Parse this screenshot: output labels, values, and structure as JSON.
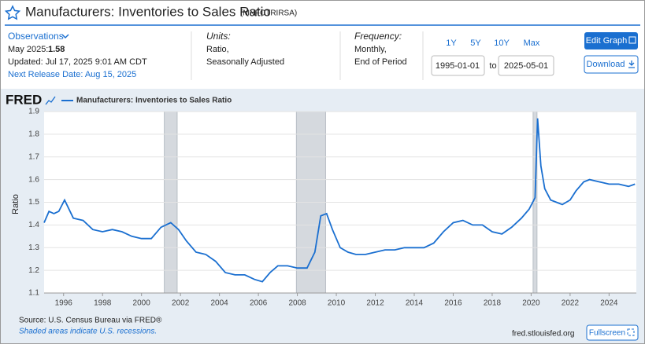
{
  "header": {
    "title": "Manufacturers: Inventories to Sales Ratio",
    "series_id": "(MNFCTRIRSA)"
  },
  "info": {
    "observations": "Observations",
    "latest_label": "May 2025:",
    "latest_value": 1.58,
    "updated": "Updated: Jul 17, 2025 9:01 AM CDT",
    "next_release": "Next Release Date: Aug 15, 2025",
    "units_label": "Units:",
    "units": [
      "Ratio,",
      "Seasonally Adjusted"
    ],
    "frequency_label": "Frequency:",
    "frequency": [
      "Monthly,",
      "End of Period"
    ]
  },
  "controls": {
    "ranges": [
      "1Y",
      "5Y",
      "10Y",
      "Max"
    ],
    "start": "1995-01-01",
    "to": "to",
    "end": "2025-05-01",
    "edit": "Edit Graph",
    "download": "Download",
    "fullscreen": "Fullscreen"
  },
  "footer": {
    "source": "Source: U.S. Census Bureau via FRED®",
    "note": "Shaded areas indicate U.S. recessions.",
    "site": "fred.stlouisfed.org"
  },
  "brand": "FRED",
  "chart_data": {
    "type": "line",
    "y_label": "Ratio",
    "x": [
      1995.0,
      1995.25,
      1995.5,
      1995.75,
      1996.05,
      1996.5,
      1997.0,
      1997.5,
      1998.0,
      1998.5,
      1999.0,
      1999.5,
      2000.0,
      2000.5,
      2001.0,
      2001.5,
      2001.9,
      2002.3,
      2002.8,
      2003.3,
      2003.8,
      2004.3,
      2004.8,
      2005.3,
      2005.8,
      2006.2,
      2006.6,
      2007.0,
      2007.5,
      2008.0,
      2008.5,
      2008.9,
      2009.2,
      2009.5,
      2009.8,
      2010.2,
      2010.6,
      2011.0,
      2011.5,
      2012.0,
      2012.5,
      2013.0,
      2013.5,
      2014.0,
      2014.5,
      2015.0,
      2015.5,
      2016.0,
      2016.5,
      2017.0,
      2017.5,
      2018.0,
      2018.5,
      2019.0,
      2019.5,
      2019.9,
      2020.2,
      2020.33,
      2020.5,
      2020.7,
      2021.0,
      2021.3,
      2021.6,
      2022.0,
      2022.3,
      2022.7,
      2023.0,
      2023.5,
      2024.0,
      2024.5,
      2025.0,
      2025.33
    ],
    "series": [
      {
        "name": "Manufacturers: Inventories to Sales Ratio",
        "color": "#1a6fd0",
        "values": [
          1.41,
          1.46,
          1.45,
          1.46,
          1.51,
          1.43,
          1.42,
          1.38,
          1.37,
          1.38,
          1.37,
          1.35,
          1.34,
          1.34,
          1.39,
          1.41,
          1.38,
          1.33,
          1.28,
          1.27,
          1.24,
          1.19,
          1.18,
          1.18,
          1.16,
          1.15,
          1.19,
          1.22,
          1.22,
          1.21,
          1.21,
          1.28,
          1.44,
          1.45,
          1.38,
          1.3,
          1.28,
          1.27,
          1.27,
          1.28,
          1.29,
          1.29,
          1.3,
          1.3,
          1.3,
          1.32,
          1.37,
          1.41,
          1.42,
          1.4,
          1.4,
          1.37,
          1.36,
          1.39,
          1.43,
          1.47,
          1.52,
          1.87,
          1.66,
          1.56,
          1.51,
          1.5,
          1.49,
          1.51,
          1.55,
          1.59,
          1.6,
          1.59,
          1.58,
          1.58,
          1.57,
          1.58
        ]
      }
    ],
    "recessions": [
      [
        2001.17,
        2001.83
      ],
      [
        2007.95,
        2009.45
      ],
      [
        2020.1,
        2020.3
      ]
    ],
    "xlim": [
      1995.0,
      2025.4
    ],
    "xticks": [
      1996,
      1998,
      2000,
      2002,
      2004,
      2006,
      2008,
      2010,
      2012,
      2014,
      2016,
      2018,
      2020,
      2022,
      2024
    ],
    "ylim": [
      1.1,
      1.9
    ],
    "yticks": [
      1.1,
      1.2,
      1.3,
      1.4,
      1.5,
      1.6,
      1.7,
      1.8,
      1.9
    ],
    "grid": true
  }
}
